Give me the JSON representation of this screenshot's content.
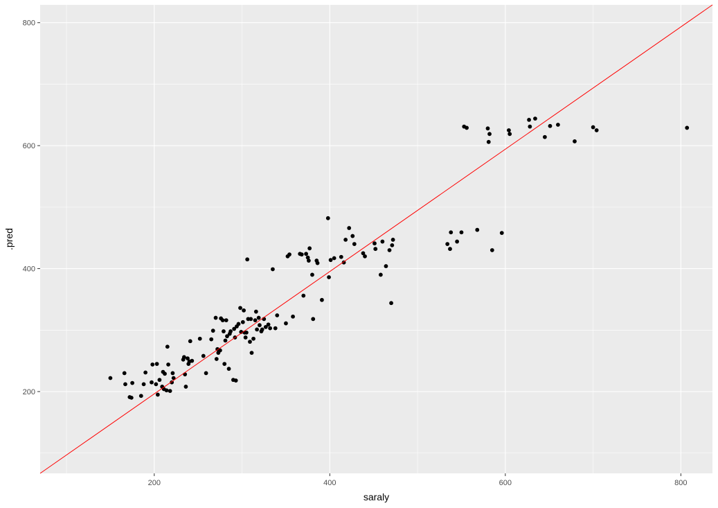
{
  "chart_data": {
    "type": "scatter",
    "title": "",
    "xlabel": "saraly",
    "ylabel": ".pred",
    "xlim": [
      70,
      836
    ],
    "ylim": [
      67,
      829
    ],
    "x_ticks": [
      200,
      400,
      600,
      800
    ],
    "x_minor": [
      100,
      300,
      500,
      700
    ],
    "y_ticks": [
      200,
      400,
      600,
      800
    ],
    "y_minor": [
      100,
      300,
      500,
      700
    ],
    "grid": true,
    "reference_line": {
      "from": [
        70,
        67
      ],
      "to": [
        836,
        829
      ],
      "color": "#ff0000"
    },
    "colors": {
      "panel": "#ebebeb",
      "grid": "#ffffff",
      "points": "#000000"
    },
    "points": [
      [
        150,
        222
      ],
      [
        166,
        230
      ],
      [
        167,
        212
      ],
      [
        172,
        191
      ],
      [
        174,
        190
      ],
      [
        175,
        214
      ],
      [
        185,
        193
      ],
      [
        188,
        212
      ],
      [
        190,
        231
      ],
      [
        197,
        215
      ],
      [
        198,
        244
      ],
      [
        202,
        212
      ],
      [
        203,
        245
      ],
      [
        204,
        195
      ],
      [
        206,
        219
      ],
      [
        209,
        208
      ],
      [
        210,
        232
      ],
      [
        211,
        204
      ],
      [
        212,
        229
      ],
      [
        214,
        202
      ],
      [
        215,
        273
      ],
      [
        216,
        244
      ],
      [
        218,
        201
      ],
      [
        220,
        215
      ],
      [
        221,
        230
      ],
      [
        222,
        222
      ],
      [
        233,
        252
      ],
      [
        234,
        256
      ],
      [
        235,
        228
      ],
      [
        236,
        208
      ],
      [
        238,
        254
      ],
      [
        239,
        245
      ],
      [
        240,
        249
      ],
      [
        241,
        282
      ],
      [
        243,
        250
      ],
      [
        252,
        286
      ],
      [
        256,
        258
      ],
      [
        259,
        230
      ],
      [
        265,
        285
      ],
      [
        267,
        299
      ],
      [
        270,
        320
      ],
      [
        271,
        253
      ],
      [
        272,
        269
      ],
      [
        273,
        263
      ],
      [
        275,
        267
      ],
      [
        276,
        319
      ],
      [
        278,
        316
      ],
      [
        279,
        298
      ],
      [
        280,
        245
      ],
      [
        281,
        283
      ],
      [
        282,
        316
      ],
      [
        283,
        290
      ],
      [
        285,
        237
      ],
      [
        286,
        294
      ],
      [
        287,
        298
      ],
      [
        290,
        219
      ],
      [
        291,
        302
      ],
      [
        292,
        288
      ],
      [
        293,
        218
      ],
      [
        294,
        306
      ],
      [
        296,
        310
      ],
      [
        298,
        336
      ],
      [
        299,
        297
      ],
      [
        301,
        313
      ],
      [
        302,
        332
      ],
      [
        303,
        296
      ],
      [
        304,
        288
      ],
      [
        305,
        296
      ],
      [
        306,
        415
      ],
      [
        307,
        318
      ],
      [
        309,
        281
      ],
      [
        310,
        318
      ],
      [
        311,
        263
      ],
      [
        313,
        286
      ],
      [
        315,
        316
      ],
      [
        316,
        330
      ],
      [
        317,
        301
      ],
      [
        319,
        320
      ],
      [
        320,
        308
      ],
      [
        322,
        298
      ],
      [
        323,
        301
      ],
      [
        325,
        318
      ],
      [
        327,
        305
      ],
      [
        330,
        309
      ],
      [
        332,
        303
      ],
      [
        335,
        399
      ],
      [
        338,
        303
      ],
      [
        340,
        324
      ],
      [
        350,
        311
      ],
      [
        352,
        420
      ],
      [
        354,
        423
      ],
      [
        358,
        322
      ],
      [
        366,
        424
      ],
      [
        368,
        423
      ],
      [
        370,
        356
      ],
      [
        373,
        424
      ],
      [
        375,
        418
      ],
      [
        376,
        413
      ],
      [
        377,
        433
      ],
      [
        380,
        390
      ],
      [
        381,
        318
      ],
      [
        385,
        413
      ],
      [
        386,
        409
      ],
      [
        391,
        349
      ],
      [
        398,
        482
      ],
      [
        399,
        386
      ],
      [
        401,
        414
      ],
      [
        405,
        417
      ],
      [
        413,
        419
      ],
      [
        416,
        410
      ],
      [
        418,
        447
      ],
      [
        422,
        466
      ],
      [
        426,
        453
      ],
      [
        428,
        440
      ],
      [
        438,
        425
      ],
      [
        440,
        420
      ],
      [
        451,
        441
      ],
      [
        452,
        432
      ],
      [
        458,
        390
      ],
      [
        460,
        444
      ],
      [
        464,
        404
      ],
      [
        468,
        430
      ],
      [
        470,
        344
      ],
      [
        471,
        438
      ],
      [
        472,
        447
      ],
      [
        534,
        440
      ],
      [
        537,
        432
      ],
      [
        538,
        459
      ],
      [
        545,
        444
      ],
      [
        550,
        459
      ],
      [
        553,
        631
      ],
      [
        556,
        629
      ],
      [
        568,
        463
      ],
      [
        580,
        628
      ],
      [
        581,
        606
      ],
      [
        582,
        619
      ],
      [
        585,
        430
      ],
      [
        596,
        458
      ],
      [
        604,
        625
      ],
      [
        605,
        619
      ],
      [
        627,
        642
      ],
      [
        628,
        631
      ],
      [
        634,
        644
      ],
      [
        645,
        614
      ],
      [
        651,
        632
      ],
      [
        660,
        634
      ],
      [
        679,
        607
      ],
      [
        700,
        630
      ],
      [
        704,
        625
      ],
      [
        807,
        629
      ]
    ]
  }
}
